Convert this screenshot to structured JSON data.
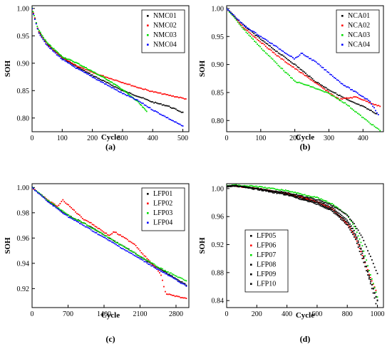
{
  "chart_data": [
    {
      "id": "a",
      "type": "scatter",
      "panel_label": "(a)",
      "xlabel": "Cycle",
      "ylabel": "SOH",
      "xlim": [
        0,
        520
      ],
      "ylim": [
        0.775,
        1.005
      ],
      "xticks": [
        0,
        100,
        200,
        300,
        400,
        500
      ],
      "yticks": [
        0.8,
        0.85,
        0.9,
        0.95,
        1.0
      ],
      "tick_decimals": 2,
      "legend_position": "top-right",
      "series": [
        {
          "name": "NMC01",
          "color": "#000000",
          "x": [
            0,
            20,
            50,
            100,
            150,
            200,
            250,
            300,
            350,
            400,
            450,
            500
          ],
          "y": [
            1.0,
            0.96,
            0.935,
            0.91,
            0.893,
            0.878,
            0.864,
            0.85,
            0.84,
            0.829,
            0.822,
            0.81
          ]
        },
        {
          "name": "NMC02",
          "color": "#ff0000",
          "x": [
            0,
            20,
            50,
            100,
            150,
            200,
            250,
            300,
            350,
            400,
            450,
            510
          ],
          "y": [
            1.0,
            0.96,
            0.934,
            0.91,
            0.895,
            0.883,
            0.874,
            0.865,
            0.856,
            0.848,
            0.842,
            0.835
          ]
        },
        {
          "name": "NMC03",
          "color": "#00dd00",
          "x": [
            0,
            20,
            50,
            100,
            150,
            200,
            250,
            300,
            350,
            380
          ],
          "y": [
            1.0,
            0.962,
            0.937,
            0.912,
            0.9,
            0.885,
            0.87,
            0.852,
            0.83,
            0.812
          ]
        },
        {
          "name": "NMC04",
          "color": "#0000ff",
          "x": [
            0,
            20,
            50,
            100,
            150,
            200,
            250,
            300,
            350,
            400,
            450,
            500
          ],
          "y": [
            1.0,
            0.958,
            0.932,
            0.907,
            0.89,
            0.875,
            0.86,
            0.845,
            0.832,
            0.815,
            0.8,
            0.785
          ]
        }
      ]
    },
    {
      "id": "b",
      "type": "scatter",
      "panel_label": "(b)",
      "xlabel": "Cycle",
      "ylabel": "SOH",
      "xlim": [
        0,
        460
      ],
      "ylim": [
        0.78,
        1.005
      ],
      "xticks": [
        0,
        100,
        200,
        300,
        400
      ],
      "yticks": [
        0.8,
        0.85,
        0.9,
        0.95,
        1.0
      ],
      "tick_decimals": 2,
      "legend_position": "top-right",
      "series": [
        {
          "name": "NCA01",
          "color": "#000000",
          "x": [
            0,
            50,
            100,
            150,
            200,
            230,
            260,
            300,
            330,
            360,
            400,
            440
          ],
          "y": [
            1.0,
            0.97,
            0.945,
            0.922,
            0.9,
            0.885,
            0.87,
            0.855,
            0.845,
            0.835,
            0.825,
            0.812
          ]
        },
        {
          "name": "NCA02",
          "color": "#ff0000",
          "x": [
            0,
            50,
            100,
            150,
            200,
            250,
            300,
            330,
            380,
            420,
            450
          ],
          "y": [
            1.0,
            0.966,
            0.94,
            0.915,
            0.893,
            0.872,
            0.85,
            0.838,
            0.842,
            0.832,
            0.825
          ]
        },
        {
          "name": "NCA03",
          "color": "#00dd00",
          "x": [
            0,
            50,
            100,
            150,
            200,
            250,
            300,
            350,
            400,
            450
          ],
          "y": [
            1.0,
            0.963,
            0.93,
            0.9,
            0.87,
            0.86,
            0.848,
            0.83,
            0.805,
            0.782
          ]
        },
        {
          "name": "NCA04",
          "color": "#0000ff",
          "x": [
            0,
            50,
            100,
            150,
            200,
            220,
            260,
            300,
            340,
            380,
            420,
            445
          ],
          "y": [
            1.0,
            0.97,
            0.95,
            0.93,
            0.91,
            0.92,
            0.905,
            0.885,
            0.865,
            0.85,
            0.835,
            0.81
          ]
        }
      ]
    },
    {
      "id": "c",
      "type": "scatter",
      "panel_label": "(c)",
      "xlabel": "Cycle",
      "ylabel": "SOH",
      "xlim": [
        0,
        3050
      ],
      "ylim": [
        0.905,
        1.003
      ],
      "xticks": [
        0,
        700,
        1400,
        2100,
        2800
      ],
      "yticks": [
        0.92,
        0.94,
        0.96,
        0.98,
        1.0
      ],
      "tick_decimals": 2,
      "legend_position": "top-right",
      "series": [
        {
          "name": "LFP01",
          "color": "#000000",
          "x": [
            0,
            300,
            500,
            700,
            1000,
            1300,
            1500,
            1800,
            2000,
            2300,
            2500,
            2800,
            3000
          ],
          "y": [
            1.0,
            0.99,
            0.983,
            0.978,
            0.972,
            0.965,
            0.96,
            0.953,
            0.948,
            0.94,
            0.935,
            0.928,
            0.923
          ]
        },
        {
          "name": "LFP02",
          "color": "#ff0000",
          "x": [
            0,
            300,
            500,
            600,
            1000,
            1100,
            1500,
            1600,
            2000,
            2100,
            2500,
            2600,
            2800,
            3000
          ],
          "y": [
            1.0,
            0.99,
            0.985,
            0.99,
            0.975,
            0.973,
            0.962,
            0.965,
            0.955,
            0.95,
            0.932,
            0.916,
            0.914,
            0.912
          ]
        },
        {
          "name": "LFP03",
          "color": "#00dd00",
          "x": [
            0,
            300,
            700,
            1000,
            1500,
            2000,
            2500,
            2800,
            3000
          ],
          "y": [
            1.0,
            0.99,
            0.978,
            0.972,
            0.96,
            0.948,
            0.936,
            0.93,
            0.926
          ]
        },
        {
          "name": "LFP04",
          "color": "#0000ff",
          "x": [
            0,
            300,
            700,
            1000,
            1500,
            2000,
            2500,
            2800,
            3000
          ],
          "y": [
            1.0,
            0.989,
            0.977,
            0.97,
            0.958,
            0.946,
            0.934,
            0.927,
            0.922
          ]
        }
      ]
    },
    {
      "id": "d",
      "type": "scatter",
      "panel_label": "(d)",
      "xlabel": "Cycle",
      "ylabel": "SOH",
      "xlim": [
        0,
        1040
      ],
      "ylim": [
        0.83,
        1.007
      ],
      "xticks": [
        0,
        200,
        400,
        600,
        800,
        1000
      ],
      "yticks": [
        0.84,
        0.88,
        0.92,
        0.96,
        1.0
      ],
      "tick_decimals": 2,
      "legend_position": "bottom-left",
      "series": [
        {
          "name": "LFP05",
          "color": "#000000",
          "x": [
            0,
            50,
            200,
            400,
            600,
            700,
            800,
            850,
            900,
            950,
            1000
          ],
          "y": [
            1.003,
            1.004,
            1.0,
            0.993,
            0.982,
            0.973,
            0.955,
            0.938,
            0.91,
            0.87,
            0.84
          ]
        },
        {
          "name": "LFP06",
          "color": "#ff0000",
          "x": [
            0,
            50,
            200,
            400,
            600,
            700,
            800,
            850,
            900,
            950,
            990
          ],
          "y": [
            1.003,
            1.004,
            1.0,
            0.993,
            0.981,
            0.971,
            0.95,
            0.932,
            0.905,
            0.875,
            0.855
          ]
        },
        {
          "name": "LFP07",
          "color": "#00dd00",
          "x": [
            0,
            50,
            200,
            400,
            600,
            700,
            800,
            850,
            900,
            950,
            1000
          ],
          "y": [
            1.004,
            1.005,
            1.003,
            0.997,
            0.987,
            0.978,
            0.962,
            0.945,
            0.918,
            0.88,
            0.845
          ]
        },
        {
          "name": "LFP08",
          "color": "#000000",
          "x": [
            0,
            50,
            200,
            400,
            600,
            700,
            800,
            850,
            900,
            950,
            1000
          ],
          "y": [
            1.003,
            1.004,
            1.0,
            0.994,
            0.984,
            0.976,
            0.962,
            0.948,
            0.93,
            0.905,
            0.878
          ]
        },
        {
          "name": "LFP09",
          "color": "#000000",
          "x": [
            0,
            50,
            200,
            400,
            600,
            700,
            800,
            850,
            900,
            950,
            1000
          ],
          "y": [
            1.003,
            1.004,
            1.0,
            0.992,
            0.98,
            0.97,
            0.952,
            0.935,
            0.908,
            0.872,
            0.84
          ]
        },
        {
          "name": "LFP10",
          "color": "#000000",
          "x": [
            0,
            50,
            200,
            400,
            600,
            700,
            800,
            850,
            900,
            950,
            990
          ],
          "y": [
            1.003,
            1.004,
            0.999,
            0.991,
            0.978,
            0.968,
            0.948,
            0.93,
            0.9,
            0.868,
            0.836
          ]
        }
      ]
    }
  ]
}
